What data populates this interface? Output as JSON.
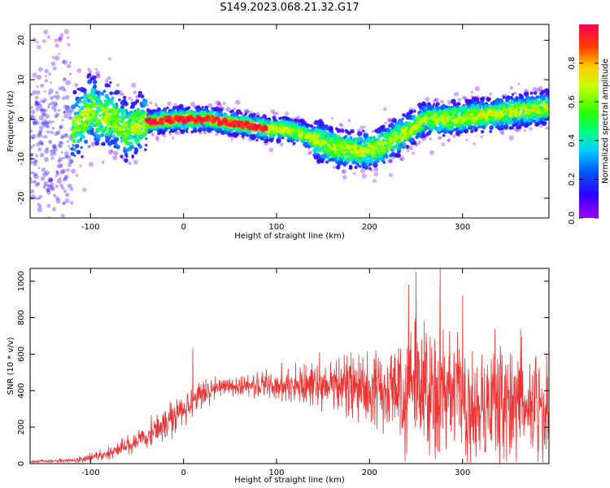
{
  "title": "S149.2023.068.21.32.G17",
  "chart_data": [
    {
      "type": "heatmap",
      "xlabel": "Height of straight line (km)",
      "ylabel": "Frequency (Hz)",
      "xlim": [
        -165,
        393
      ],
      "ylim": [
        -25,
        24
      ],
      "xticks": [
        -100,
        0,
        100,
        200,
        300
      ],
      "yticks": [
        -20,
        -10,
        0,
        10,
        20
      ],
      "grid": false,
      "colorbar": {
        "label": "Normalized spectral amplitude",
        "ticks": [
          0.0,
          0.2,
          0.4,
          0.6,
          0.8
        ],
        "range": [
          0,
          1
        ],
        "colormap": "rainbow (purple to red)"
      },
      "ridge_frequency": {
        "x": [
          -150,
          -130,
          -110,
          -100,
          -90,
          -75,
          -60,
          -45,
          -30,
          -10,
          10,
          30,
          50,
          70,
          90,
          110,
          130,
          150,
          170,
          190,
          200,
          220,
          240,
          260,
          280,
          300,
          320,
          340,
          360,
          380,
          393
        ],
        "y": [
          -5,
          -4,
          -1,
          3,
          1,
          0.5,
          -3,
          -1,
          -0.5,
          0,
          0,
          0,
          -1,
          -1.5,
          -2.5,
          -2.5,
          -4,
          -6,
          -7.5,
          -8,
          -8,
          -6,
          -3,
          0,
          0,
          0.5,
          1,
          1.5,
          2,
          2.5,
          3
        ]
      }
    },
    {
      "type": "line",
      "xlabel": "Height of straight line (km)",
      "ylabel": "SNR (10 * v/v)",
      "xlim": [
        -165,
        393
      ],
      "ylim": [
        0,
        1070
      ],
      "xticks": [
        -100,
        0,
        100,
        200,
        300
      ],
      "yticks": [
        0,
        200,
        400,
        600,
        800,
        1000
      ],
      "grid": false,
      "series": [
        {
          "color": "#ee3333",
          "envelope": {
            "x": [
              -165,
              -120,
              -100,
              -80,
              -60,
              -40,
              -20,
              0,
              20,
              40,
              60,
              80,
              100,
              120,
              140,
              160,
              180,
              200,
              220,
              240,
              260,
              280,
              300,
              320,
              340,
              360,
              380,
              393
            ],
            "mean": [
              10,
              18,
              30,
              60,
              100,
              150,
              220,
              300,
              380,
              420,
              430,
              430,
              430,
              425,
              430,
              430,
              425,
              415,
              400,
              380,
              380,
              380,
              360,
              350,
              340,
              330,
              320,
              300
            ],
            "spread": [
              6,
              10,
              20,
              30,
              45,
              60,
              80,
              90,
              70,
              40,
              45,
              60,
              80,
              90,
              100,
              120,
              140,
              170,
              230,
              280,
              300,
              300,
              300,
              300,
              300,
              300,
              300,
              300
            ]
          },
          "spikes": [
            {
              "x": 10,
              "y": 630
            },
            {
              "x": 250,
              "y": 1050
            },
            {
              "x": 276,
              "y": 1070
            },
            {
              "x": 242,
              "y": 980
            },
            {
              "x": 300,
              "y": 920
            }
          ]
        }
      ]
    }
  ]
}
